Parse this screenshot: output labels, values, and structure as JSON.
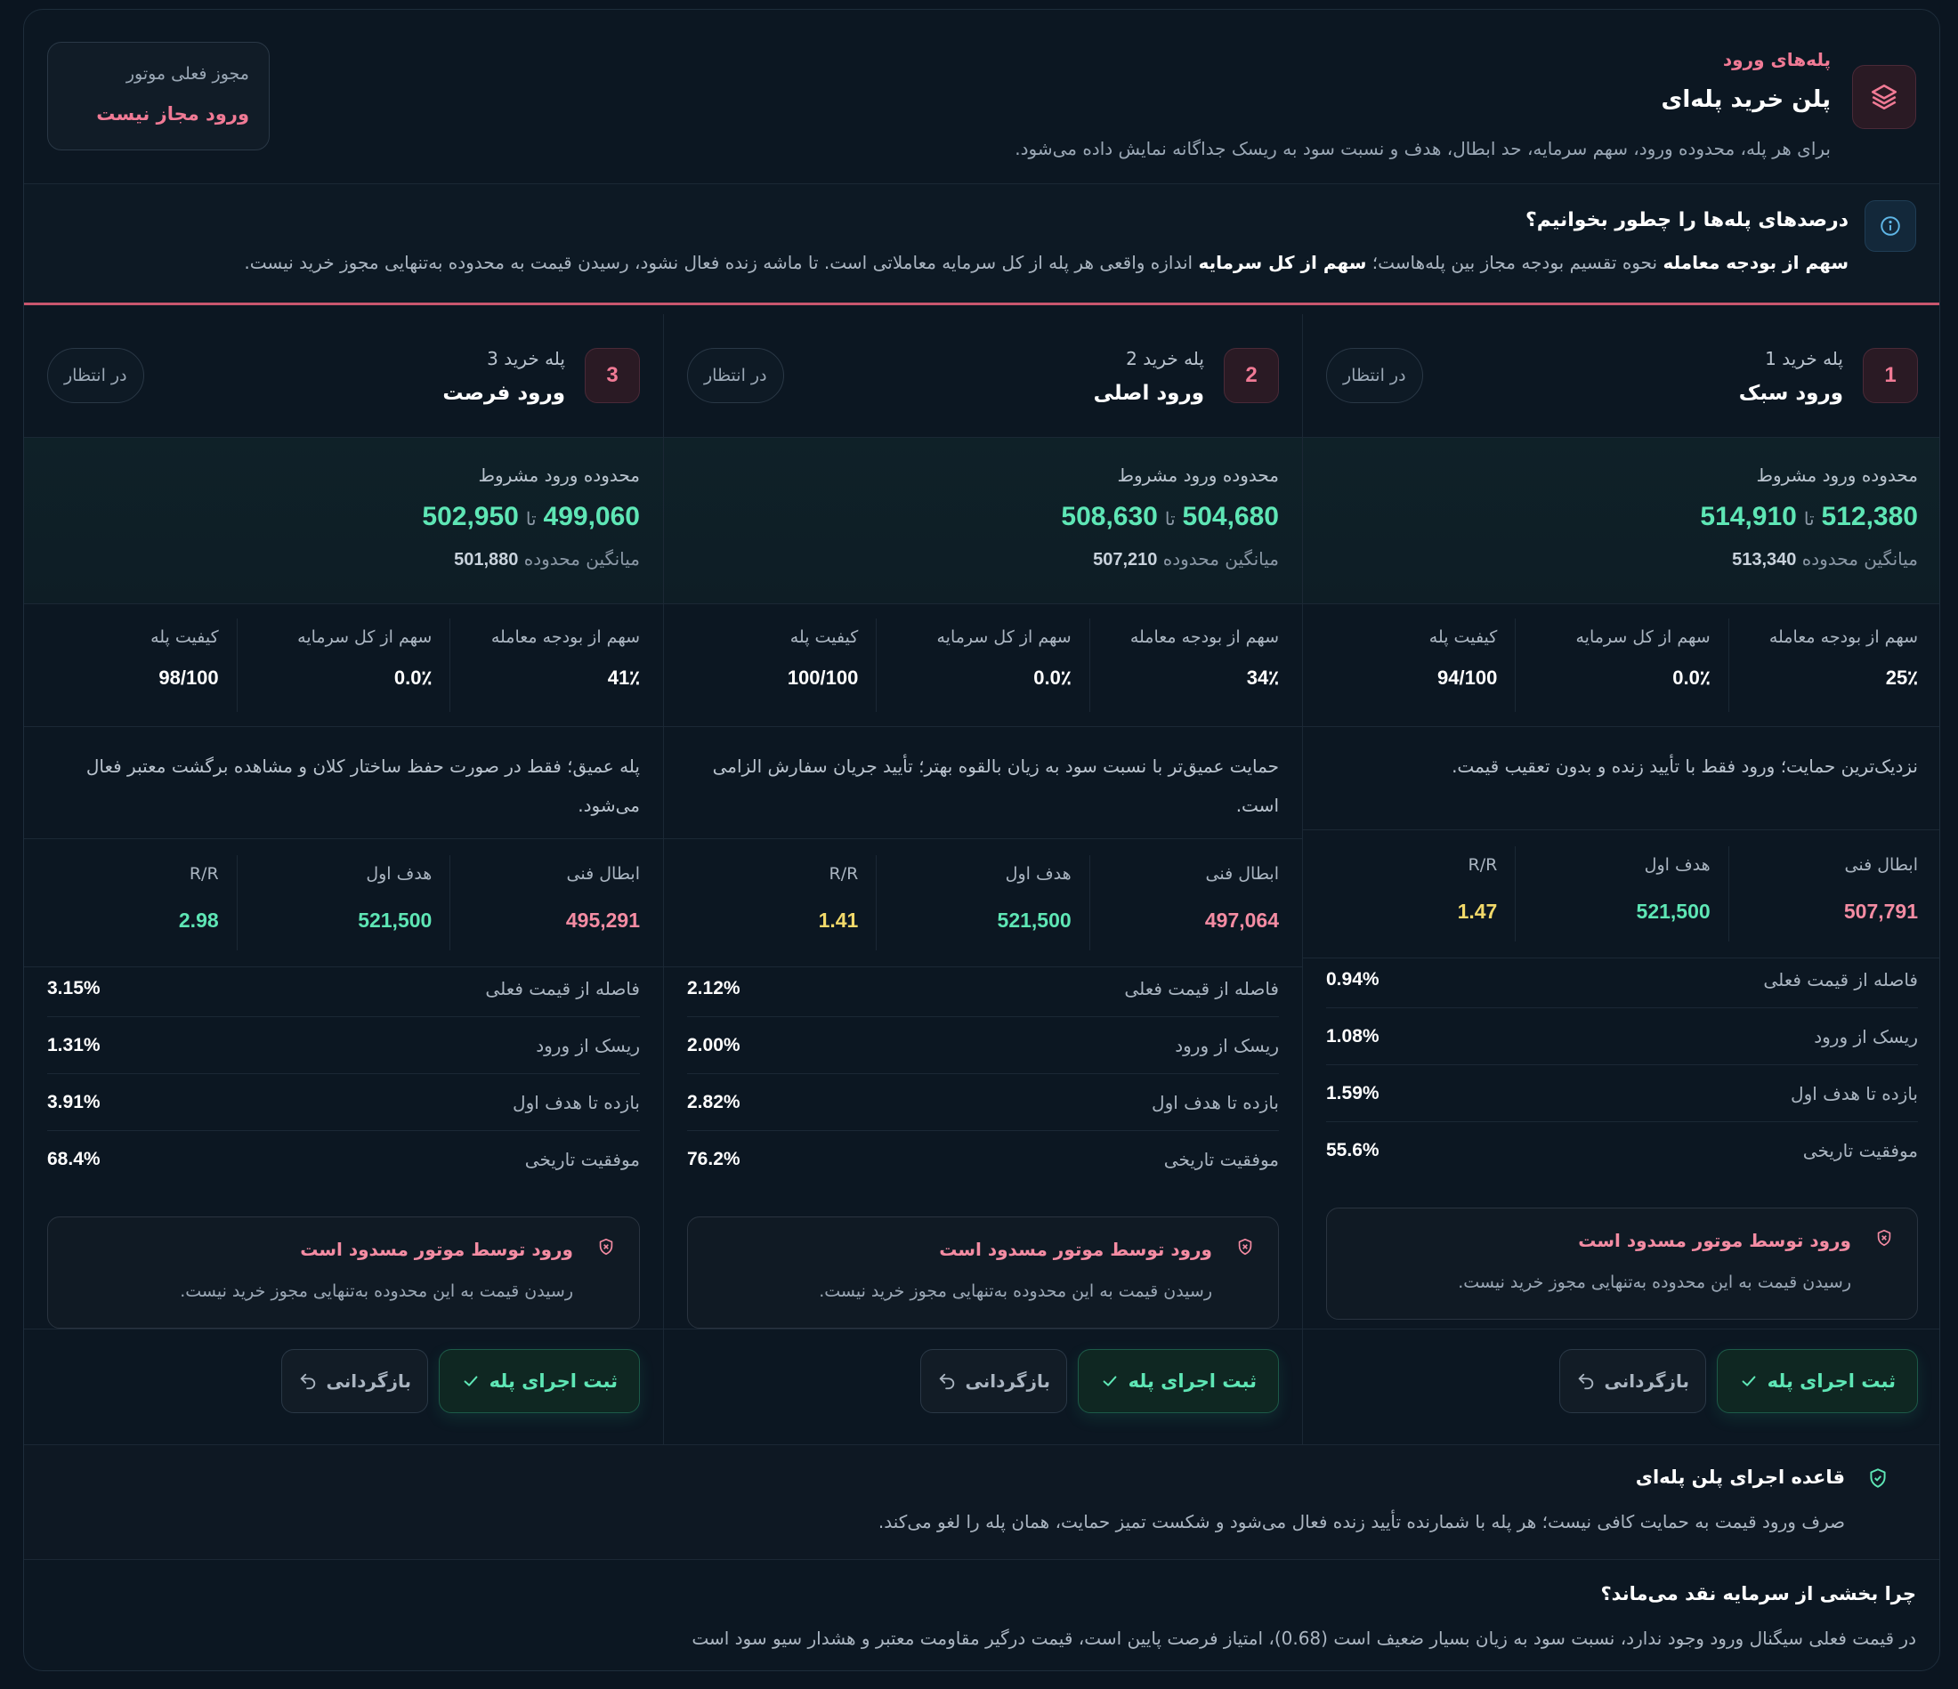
{
  "header": {
    "eyebrow": "پله‌های ورود",
    "title": "پلن خرید پله‌ای",
    "description": "برای هر پله، محدوده ورود، سهم سرمایه، حد ابطال، هدف و نسبت سود به ریسک جداگانه نمایش داده می‌شود.",
    "icon": "layers-icon",
    "permit_label": "مجوز فعلی موتور",
    "permit_value": "ورود مجاز نیست"
  },
  "info": {
    "title": "درصدهای پله‌ها را چطور بخوانیم؟",
    "strong1": "سهم از بودجه معامله",
    "text1": " نحوه تقسیم بودجه مجاز بین پله‌هاست؛ ",
    "strong2": "سهم از کل سرمایه",
    "text2": " اندازه واقعی هر پله از کل سرمایه معاملاتی است. تا ماشه زنده فعال نشود، رسیدن قیمت به محدوده به‌تنهایی مجوز خرید نیست."
  },
  "labels": {
    "pending": "در انتظار",
    "range_label": "محدوده ورود مشروط",
    "range_sep": "تا",
    "avg_label": "میانگین محدوده",
    "budget_share": "سهم از بودجه معامله",
    "capital_share": "سهم از کل سرمایه",
    "quality": "کیفیت پله",
    "stop": "ابطال فنی",
    "target": "هدف اول",
    "rr": "R/R",
    "distance": "فاصله از قیمت فعلی",
    "risk": "ریسک از ورود",
    "return": "بازده تا هدف اول",
    "success": "موفقیت تاریخی",
    "blocked_title": "ورود توسط موتور مسدود است",
    "blocked_text": "رسیدن قیمت به این محدوده به‌تنهایی مجوز خرید نیست.",
    "commit": "ثبت اجرای پله",
    "undo": "بازگردانی"
  },
  "steps": [
    {
      "number": "1",
      "sub": "پله خرید 1",
      "name": "ورود سبک",
      "range_low": "512,380",
      "range_high": "514,910",
      "avg": "513,340",
      "budget_share": "25٪",
      "capital_share": "0.0٪",
      "quality": "94/100",
      "note": "نزدیک‌ترین حمایت؛ ورود فقط با تأیید زنده و بدون تعقیب قیمت.",
      "stop": "507,791",
      "target": "521,500",
      "rr": "1.47",
      "distance": "0.94%",
      "risk": "1.08%",
      "return": "1.59%",
      "success": "55.6%"
    },
    {
      "number": "2",
      "sub": "پله خرید 2",
      "name": "ورود اصلی",
      "range_low": "504,680",
      "range_high": "508,630",
      "avg": "507,210",
      "budget_share": "34٪",
      "capital_share": "0.0٪",
      "quality": "100/100",
      "note": "حمایت عمیق‌تر با نسبت سود به زیان بالقوه بهتر؛ تأیید جریان سفارش الزامی است.",
      "stop": "497,064",
      "target": "521,500",
      "rr": "1.41",
      "distance": "2.12%",
      "risk": "2.00%",
      "return": "2.82%",
      "success": "76.2%"
    },
    {
      "number": "3",
      "sub": "پله خرید 3",
      "name": "ورود فرصت",
      "range_low": "499,060",
      "range_high": "502,950",
      "avg": "501,880",
      "budget_share": "41٪",
      "capital_share": "0.0٪",
      "quality": "98/100",
      "note": "پله عمیق؛ فقط در صورت حفظ ساختار کلان و مشاهده برگشت معتبر فعال می‌شود.",
      "stop": "495,291",
      "target": "521,500",
      "rr": "2.98",
      "distance": "3.15%",
      "risk": "1.31%",
      "return": "3.91%",
      "success": "68.4%"
    }
  ],
  "rule": {
    "title": "قاعده اجرای پلن پله‌ای",
    "text": "صرف ورود قیمت به حمایت کافی نیست؛ هر پله با شمارنده تأیید زنده فعال می‌شود و شکست تمیز حمایت، همان پله را لغو می‌کند."
  },
  "why": {
    "title": "چرا بخشی از سرمایه نقد می‌ماند؟",
    "text": "در قیمت فعلی سیگنال ورود وجود ندارد، نسبت سود به زیان بسیار ضعیف است (0.68)، امتیاز فرصت پایین است، قیمت درگیر مقاومت معتبر و هشدار سیو سود است"
  },
  "colors": {
    "accent_pink": "#f07a95",
    "accent_green": "#5ee6b5",
    "accent_yellow": "#f2d96a",
    "background": "#0c1722"
  }
}
